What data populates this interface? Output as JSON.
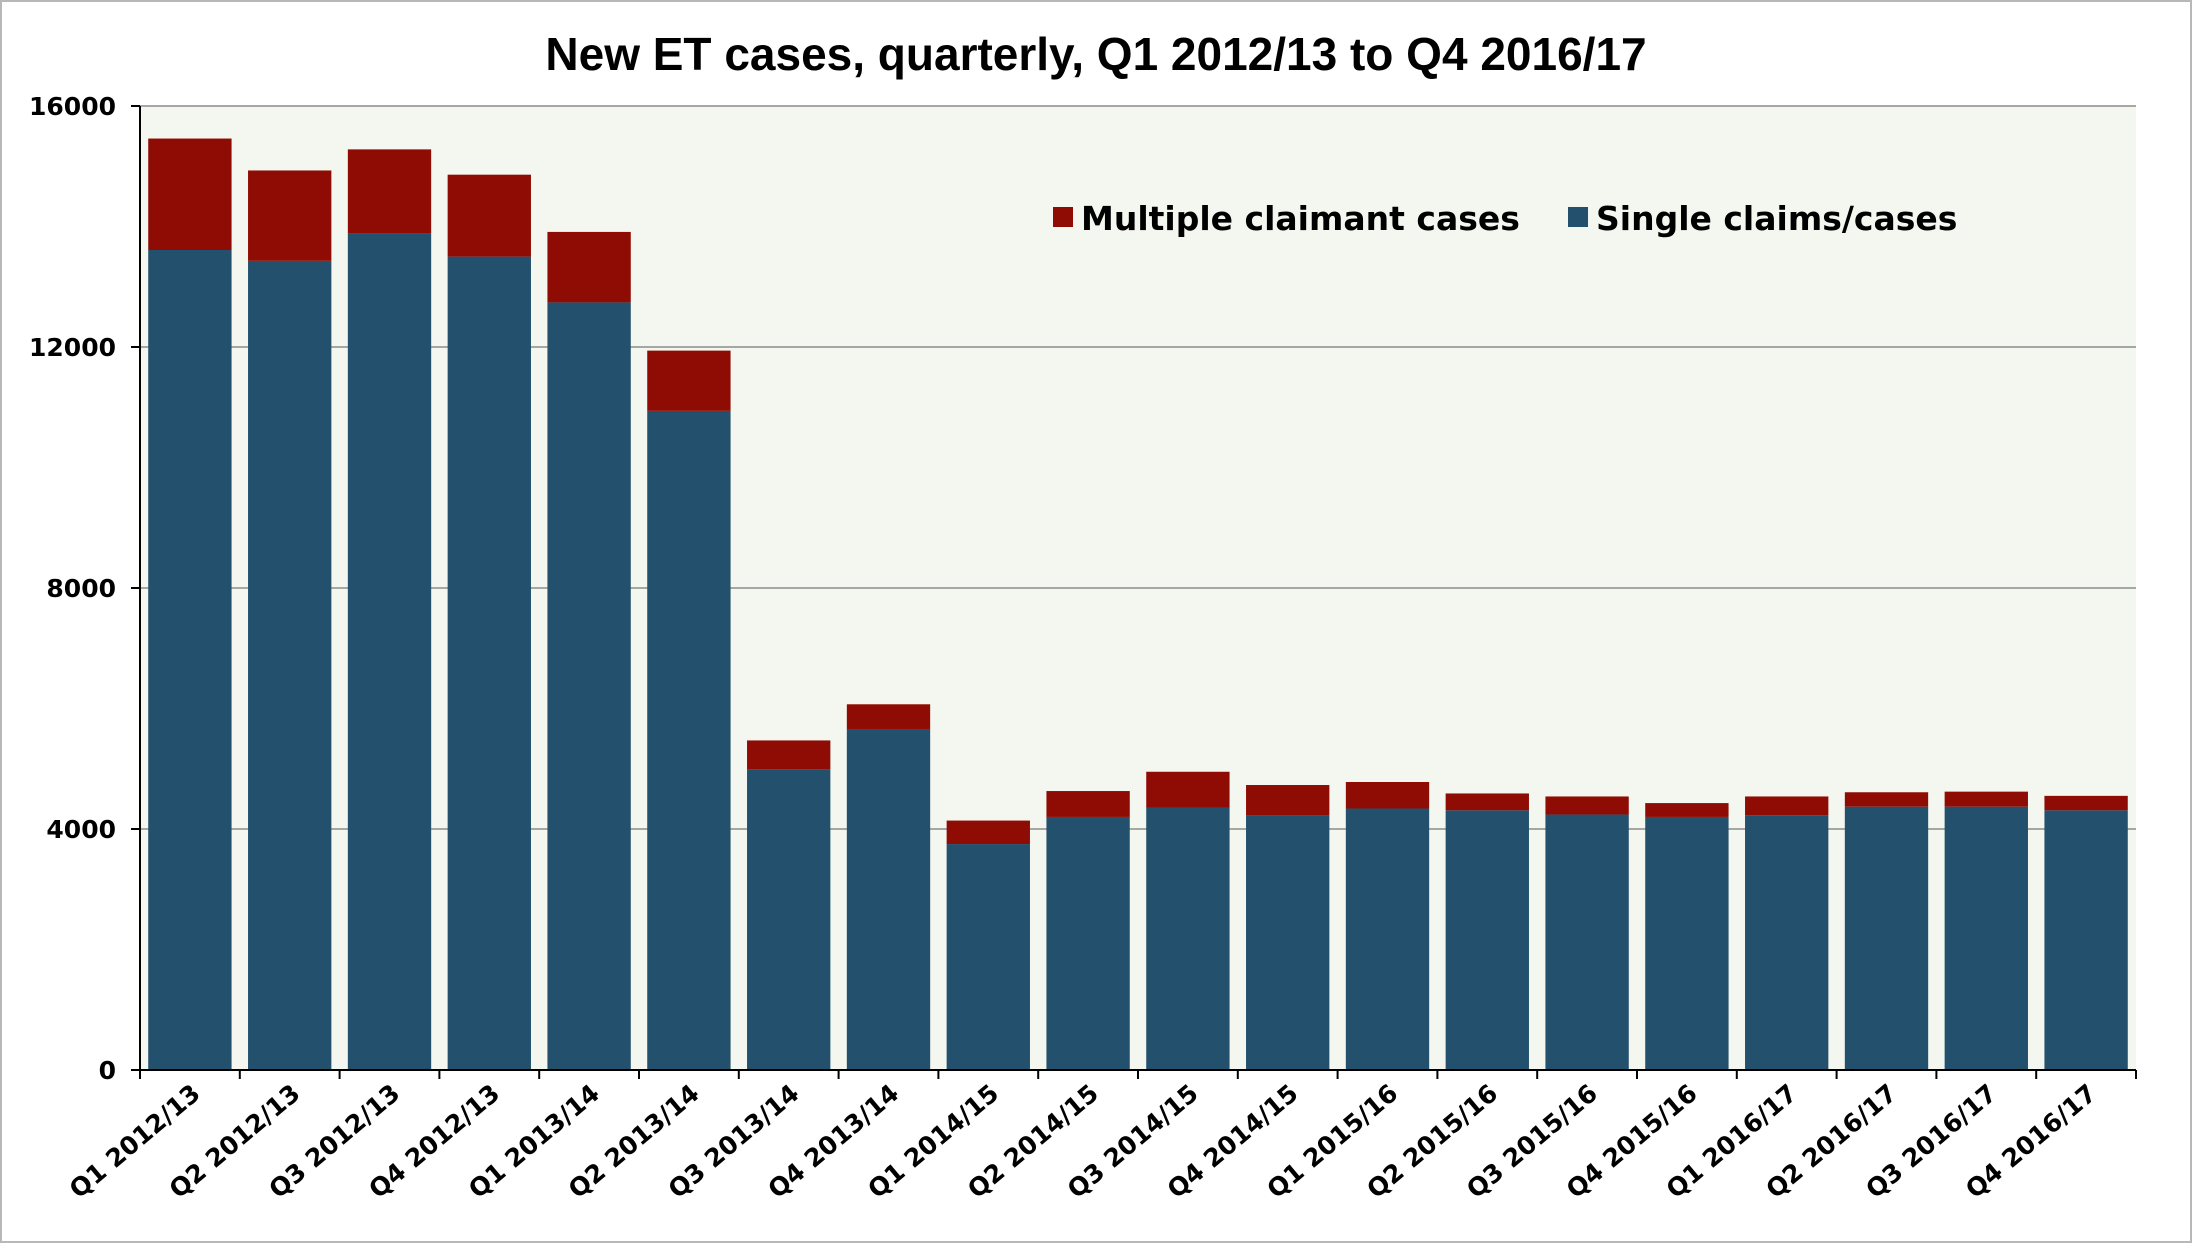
{
  "chart_data": {
    "type": "bar",
    "stacked": true,
    "title": "New ET cases, quarterly, Q1 2012/13 to Q4 2016/17",
    "xlabel": "",
    "ylabel": "",
    "ylim": [
      0,
      16000
    ],
    "yticks": [
      0,
      4000,
      8000,
      12000,
      16000
    ],
    "ytick_labels": [
      "0",
      "4000",
      "8000",
      "12000",
      "16000"
    ],
    "grid": true,
    "legend_position": "top-right",
    "categories": [
      "Q1 2012/13",
      "Q2 2012/13",
      "Q3 2012/13",
      "Q4 2012/13",
      "Q1 2013/14",
      "Q2 2013/14",
      "Q3 2013/14",
      "Q4 2013/14",
      "Q1 2014/15",
      "Q2 2014/15",
      "Q3 2014/15",
      "Q4 2014/15",
      "Q1 2015/16",
      "Q2 2015/16",
      "Q3 2015/16",
      "Q4 2015/16",
      "Q1 2016/17",
      "Q2 2016/17",
      "Q3 2016/17",
      "Q4 2016/17"
    ],
    "series": [
      {
        "name": "Single claims/cases",
        "color": "#22506d",
        "values": [
          13610,
          13430,
          13880,
          13500,
          12740,
          10940,
          4990,
          5660,
          3750,
          4200,
          4350,
          4220,
          4340,
          4310,
          4240,
          4200,
          4230,
          4370,
          4370,
          4310
        ]
      },
      {
        "name": "Multiple claimant cases",
        "color": "#8f0c04",
        "values": [
          1850,
          1500,
          1400,
          1360,
          1170,
          1000,
          480,
          410,
          390,
          430,
          600,
          510,
          440,
          280,
          300,
          230,
          310,
          240,
          250,
          240
        ]
      }
    ],
    "legend_order": [
      "Multiple claimant cases",
      "Single claims/cases"
    ]
  },
  "style": {
    "plot_background": "#f4f7ef",
    "gridline_color": "#8c8c8c",
    "axis_color": "#000000"
  }
}
